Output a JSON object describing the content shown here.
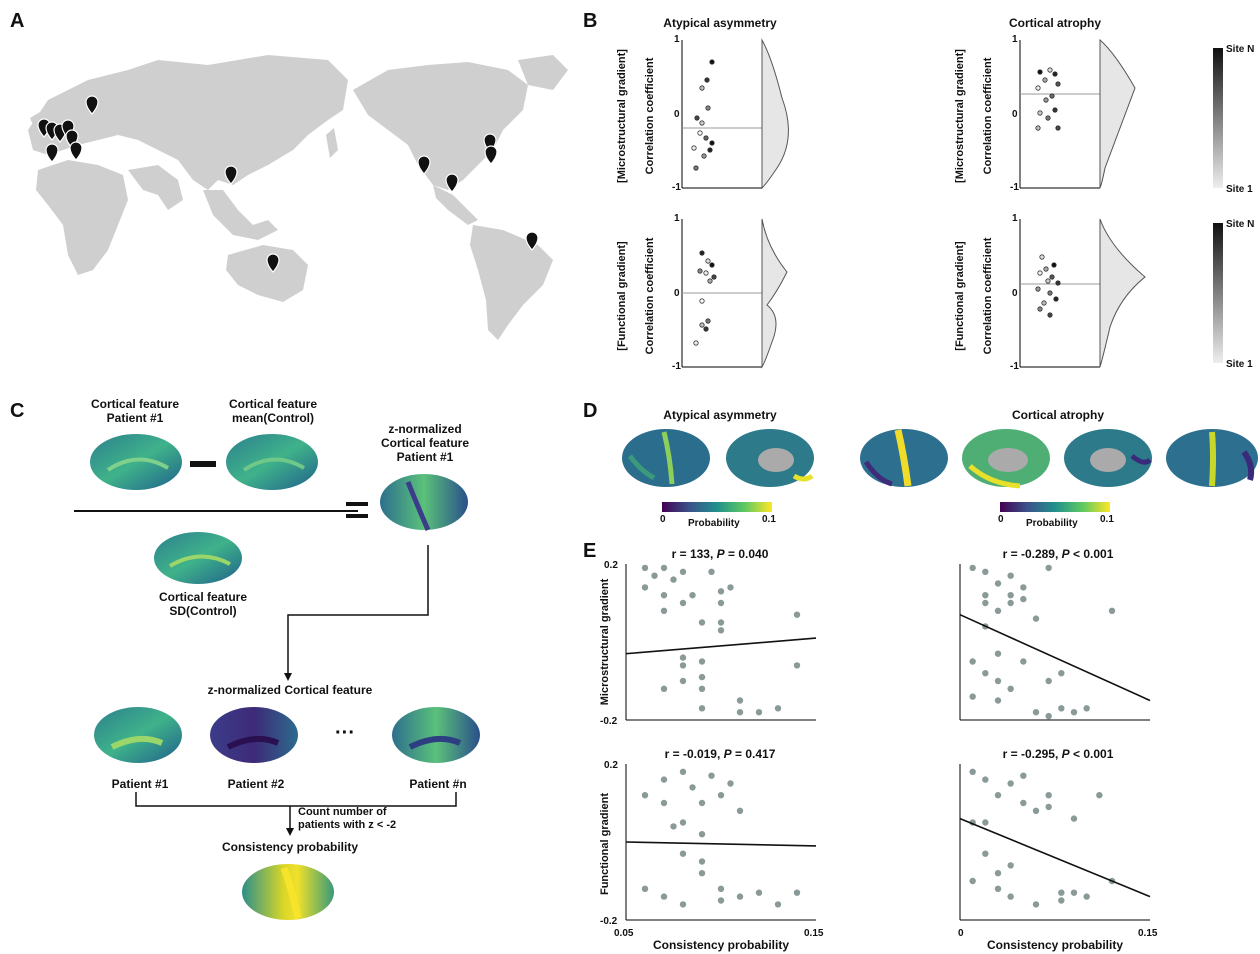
{
  "panels": {
    "A": "A",
    "B": "B",
    "C": "C",
    "D": "D",
    "E": "E"
  },
  "b": {
    "col_titles": [
      "Atypical asymmetry",
      "Cortical atrophy"
    ],
    "row_labels": [
      "[Microstructural gradient]",
      "[Functional gradient]"
    ],
    "ylabel": "Correlation coefficient",
    "ticks": [
      "1",
      "0",
      "-1"
    ],
    "colorbar": {
      "top": "Site N",
      "bottom": "Site 1"
    }
  },
  "c": {
    "patient_feature": "Cortical feature\nPatient #1",
    "mean_control": "Cortical feature\nmean(Control)",
    "sd_control": "Cortical feature\nSD(Control)",
    "z_patient": "z-normalized\nCortical feature\nPatient #1",
    "z_feature": "z-normalized Cortical feature",
    "patients": [
      "Patient #1",
      "Patient #2",
      "Patient #n"
    ],
    "ellipsis": "···",
    "count_text": "Count number of\npatients with z < -2",
    "consistency": "Consistency probability"
  },
  "d": {
    "titles": [
      "Atypical asymmetry",
      "Cortical atrophy"
    ],
    "cbar_label": "Probability",
    "cbar_min": "0",
    "cbar_max": "0.1"
  },
  "e": {
    "stats": [
      {
        "r": "r = 133, ",
        "p": "P",
        "v": " = 0.040"
      },
      {
        "r": "r = -0.289, ",
        "p": "P",
        "v": " < 0.001"
      },
      {
        "r": "r = -0.019, ",
        "p": "P",
        "v": " = 0.417"
      },
      {
        "r": "r = -0.295, ",
        "p": "P",
        "v": " < 0.001"
      }
    ],
    "ylabels": [
      "Microstructural gradient",
      "Functional gradient"
    ],
    "xlabel": "Consistency probability",
    "yticks": [
      "0.2",
      "-0.2"
    ],
    "xticks_left": [
      "0.05",
      "0.15"
    ],
    "xticks_right": [
      "0",
      "0.15"
    ]
  },
  "chart_data": [
    {
      "type": "scatter",
      "title": "r = 133, P = 0.040",
      "ylabel": "Microstructural gradient",
      "xlim": [
        0.05,
        0.15
      ],
      "ylim": [
        -0.2,
        0.2
      ],
      "x": [
        0.06,
        0.06,
        0.07,
        0.07,
        0.08,
        0.08,
        0.09,
        0.09,
        0.1,
        0.1,
        0.11,
        0.12,
        0.14,
        0.14,
        0.07,
        0.08,
        0.09,
        0.1,
        0.11,
        0.08,
        0.09,
        0.065,
        0.075,
        0.085,
        0.095,
        0.105,
        0.08,
        0.09,
        0.07,
        0.1,
        0.13
      ],
      "y": [
        0.19,
        0.14,
        0.19,
        0.12,
        0.18,
        0.1,
        0.05,
        -0.05,
        0.1,
        0.03,
        -0.15,
        -0.18,
        0.07,
        -0.06,
        -0.12,
        -0.1,
        -0.17,
        0.13,
        -0.18,
        -0.06,
        -0.12,
        0.17,
        0.16,
        0.12,
        0.18,
        0.14,
        -0.04,
        -0.09,
        0.08,
        0.05,
        -0.17
      ],
      "fit": [
        [
          0.05,
          -0.03
        ],
        [
          0.15,
          0.01
        ]
      ]
    },
    {
      "type": "scatter",
      "title": "r = -0.289, P < 0.001",
      "ylabel": "Microstructural gradient",
      "xlim": [
        0,
        0.15
      ],
      "ylim": [
        -0.2,
        0.2
      ],
      "x": [
        0.01,
        0.01,
        0.02,
        0.02,
        0.03,
        0.03,
        0.04,
        0.04,
        0.05,
        0.06,
        0.07,
        0.07,
        0.08,
        0.1,
        0.12,
        0.02,
        0.03,
        0.04,
        0.05,
        0.06,
        0.01,
        0.02,
        0.03,
        0.07,
        0.08,
        0.09,
        0.04,
        0.03,
        0.02,
        0.05
      ],
      "y": [
        0.19,
        -0.05,
        0.18,
        0.1,
        0.15,
        -0.03,
        0.12,
        -0.12,
        0.14,
        -0.18,
        0.19,
        -0.1,
        -0.08,
        -0.17,
        0.08,
        0.04,
        -0.15,
        0.1,
        -0.05,
        0.06,
        -0.14,
        -0.08,
        0.08,
        -0.19,
        -0.17,
        -0.18,
        0.17,
        -0.1,
        0.12,
        0.11
      ],
      "fit": [
        [
          0,
          0.07
        ],
        [
          0.15,
          -0.15
        ]
      ]
    },
    {
      "type": "scatter",
      "title": "r = -0.019, P = 0.417",
      "ylabel": "Functional gradient",
      "xlim": [
        0.05,
        0.15
      ],
      "ylim": [
        -0.2,
        0.2
      ],
      "x": [
        0.06,
        0.06,
        0.07,
        0.07,
        0.08,
        0.08,
        0.08,
        0.09,
        0.09,
        0.1,
        0.1,
        0.11,
        0.11,
        0.12,
        0.13,
        0.14,
        0.07,
        0.08,
        0.09,
        0.1,
        0.085,
        0.09,
        0.095,
        0.075,
        0.105
      ],
      "y": [
        0.12,
        -0.12,
        0.16,
        -0.14,
        0.18,
        0.05,
        -0.16,
        0.1,
        -0.05,
        0.12,
        -0.12,
        0.08,
        -0.14,
        -0.13,
        -0.16,
        -0.13,
        0.1,
        -0.03,
        0.02,
        -0.15,
        0.14,
        -0.08,
        0.17,
        0.04,
        0.15
      ],
      "fit": [
        [
          0.05,
          0.0
        ],
        [
          0.15,
          -0.01
        ]
      ]
    },
    {
      "type": "scatter",
      "title": "r = -0.295, P < 0.001",
      "ylabel": "Functional gradient",
      "xlim": [
        0,
        0.15
      ],
      "ylim": [
        -0.2,
        0.2
      ],
      "x": [
        0.01,
        0.01,
        0.02,
        0.02,
        0.03,
        0.03,
        0.04,
        0.04,
        0.05,
        0.06,
        0.07,
        0.08,
        0.09,
        0.1,
        0.11,
        0.12,
        0.02,
        0.03,
        0.05,
        0.06,
        0.07,
        0.01,
        0.04,
        0.08,
        0.09
      ],
      "y": [
        0.18,
        -0.1,
        0.16,
        -0.03,
        0.12,
        -0.12,
        0.15,
        -0.14,
        0.1,
        -0.16,
        0.12,
        -0.13,
        0.06,
        -0.14,
        0.12,
        -0.1,
        0.05,
        -0.08,
        0.17,
        0.08,
        0.09,
        0.05,
        -0.06,
        -0.15,
        -0.13
      ],
      "fit": [
        [
          0,
          0.06
        ],
        [
          0.15,
          -0.14
        ]
      ]
    }
  ]
}
